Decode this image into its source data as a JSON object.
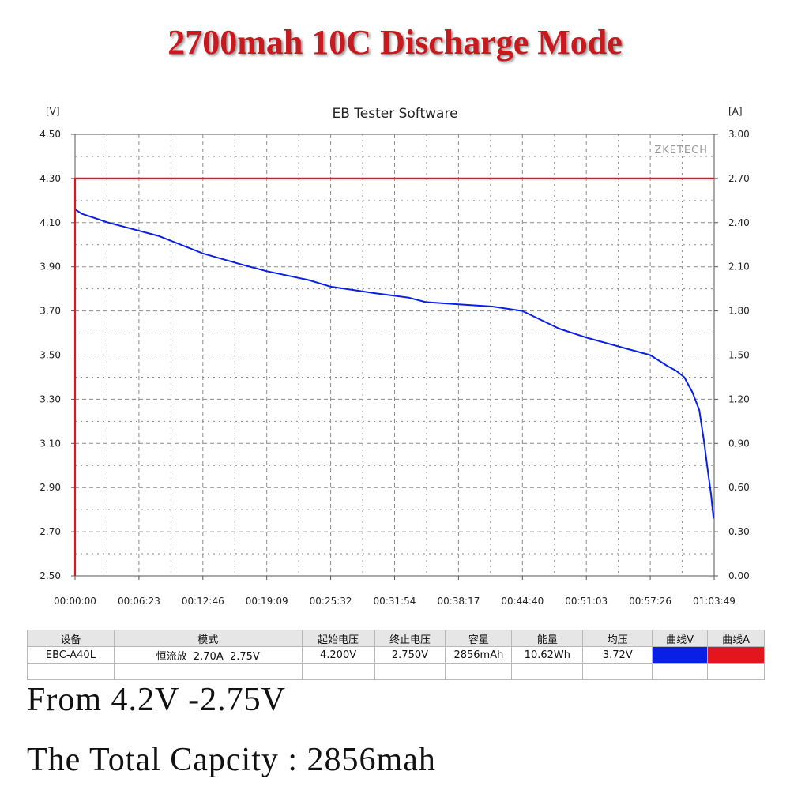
{
  "headline": "2700mah 10C Discharge Mode",
  "chart_data": {
    "type": "line",
    "title": "EB Tester Software",
    "watermark": "ZKETECH",
    "y_left_unit": "[V]",
    "y_right_unit": "[A]",
    "y_left_range": [
      2.5,
      4.5
    ],
    "y_right_range": [
      0.0,
      3.0
    ],
    "y_left_ticks": [
      "2.50",
      "2.70",
      "2.90",
      "3.10",
      "3.30",
      "3.50",
      "3.70",
      "3.90",
      "4.10",
      "4.30",
      "4.50"
    ],
    "y_right_ticks": [
      "0.00",
      "0.30",
      "0.60",
      "0.90",
      "1.20",
      "1.50",
      "1.80",
      "2.10",
      "2.40",
      "2.70",
      "3.00"
    ],
    "x_ticks": [
      "00:00:00",
      "00:06:23",
      "00:12:46",
      "00:19:09",
      "00:25:32",
      "00:31:54",
      "00:38:17",
      "00:44:40",
      "00:51:03",
      "00:57:26",
      "01:03:49"
    ],
    "x_range_seconds": [
      0,
      3829
    ],
    "grid": true,
    "series": [
      {
        "axis": "left",
        "color": "#0a1fe6",
        "x_seconds": [
          0,
          40,
          200,
          500,
          767,
          1000,
          1149,
          1400,
          1532,
          1800,
          2000,
          2100,
          2298,
          2500,
          2680,
          2900,
          3060,
          3300,
          3446,
          3550,
          3600,
          3650,
          3700,
          3740,
          3770,
          3790,
          3810,
          3825
        ],
        "voltage": [
          4.16,
          4.14,
          4.1,
          4.04,
          3.96,
          3.91,
          3.88,
          3.84,
          3.81,
          3.78,
          3.76,
          3.74,
          3.73,
          3.72,
          3.7,
          3.62,
          3.58,
          3.53,
          3.5,
          3.45,
          3.43,
          3.4,
          3.33,
          3.25,
          3.1,
          2.98,
          2.87,
          2.76
        ]
      },
      {
        "axis": "right",
        "color": "#e3161e",
        "x_seconds": [
          0,
          0,
          3829
        ],
        "current": [
          0.0,
          2.7,
          2.7
        ]
      }
    ]
  },
  "info_table": {
    "headers": [
      "设备",
      "模式",
      "起始电压",
      "终止电压",
      "容量",
      "能量",
      "均压",
      "曲线V",
      "曲线A"
    ],
    "row": [
      "EBC-A40L",
      "恒流放  2.70A  2.75V",
      "4.200V",
      "2.750V",
      "2856mAh",
      "10.62Wh",
      "3.72V"
    ],
    "curve_v_color": "#0a1fe6",
    "curve_a_color": "#e3161e"
  },
  "notes": {
    "range": "From 4.2V -2.75V",
    "capacity": "The Total Capcity : 2856mah"
  }
}
